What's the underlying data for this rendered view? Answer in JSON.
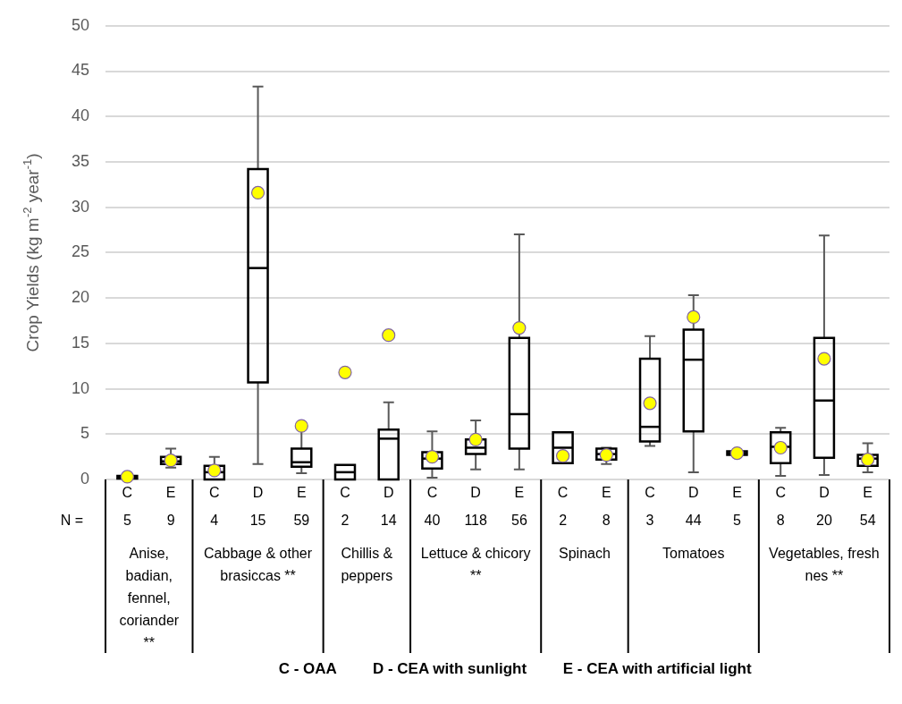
{
  "chart_data": {
    "type": "box",
    "ylabel": "Crop Yields (kg m$^{-2}$ year$^{-1}$)",
    "categories": [
      "C",
      "E",
      "C",
      "D",
      "E",
      "C",
      "D",
      "C",
      "D",
      "E",
      "C",
      "E",
      "C",
      "D",
      "E",
      "C",
      "D",
      "E"
    ],
    "color": "#000000",
    "boxes": [
      {
        "low": 0,
        "q1": 0.1,
        "median": 0.2,
        "q3": 0.4,
        "high": 0.4,
        "mean": 0.3
      },
      {
        "low": 1.3,
        "q1": 1.7,
        "median": 2.0,
        "q3": 2.5,
        "high": 3.4,
        "mean": 2.1
      },
      {
        "low": 0,
        "q1": 0,
        "median": 0.8,
        "q3": 1.5,
        "high": 2.5,
        "mean": 1.0
      },
      {
        "low": 1.7,
        "q1": 10.7,
        "median": 23.3,
        "q3": 34.2,
        "high": 43.3,
        "mean": 31.6
      },
      {
        "low": 0.7,
        "q1": 1.4,
        "median": 1.9,
        "q3": 3.4,
        "high": 5.9,
        "mean": 5.9
      },
      {
        "low": 0,
        "q1": 0,
        "median": 0.8,
        "q3": 1.6,
        "high": 1.6,
        "mean": 11.8
      },
      {
        "low": 0,
        "q1": 0,
        "median": 4.5,
        "q3": 5.5,
        "high": 8.5,
        "mean": 15.9
      },
      {
        "low": 0.2,
        "q1": 1.2,
        "median": 2.3,
        "q3": 3.0,
        "high": 5.3,
        "mean": 2.5
      },
      {
        "low": 1.1,
        "q1": 2.8,
        "median": 3.5,
        "q3": 4.4,
        "high": 6.5,
        "mean": 4.4
      },
      {
        "low": 1.1,
        "q1": 3.4,
        "median": 7.2,
        "q3": 15.6,
        "high": 27.0,
        "mean": 16.7
      },
      {
        "low": 1.8,
        "q1": 1.8,
        "median": 3.5,
        "q3": 5.2,
        "high": 5.2,
        "mean": 2.6
      },
      {
        "low": 1.7,
        "q1": 2.2,
        "median": 2.8,
        "q3": 3.4,
        "high": 3.5,
        "mean": 2.7
      },
      {
        "low": 3.7,
        "q1": 4.2,
        "median": 5.8,
        "q3": 13.3,
        "high": 15.8,
        "mean": 8.4
      },
      {
        "low": 0.8,
        "q1": 5.3,
        "median": 13.2,
        "q3": 16.5,
        "high": 20.3,
        "mean": 17.9
      },
      {
        "low": 2.7,
        "q1": 2.7,
        "median": 2.9,
        "q3": 3.1,
        "high": 3.1,
        "mean": 2.9
      },
      {
        "low": 0.4,
        "q1": 1.8,
        "median": 3.6,
        "q3": 5.2,
        "high": 5.7,
        "mean": 3.5
      },
      {
        "low": 0.5,
        "q1": 2.4,
        "median": 8.7,
        "q3": 15.6,
        "high": 26.9,
        "mean": 13.3
      },
      {
        "low": 0.8,
        "q1": 1.5,
        "median": 2.3,
        "q3": 2.7,
        "high": 4.0,
        "mean": 2.2
      }
    ],
    "ylim": [
      0,
      50
    ],
    "yticks": [
      0,
      5,
      10,
      15,
      20,
      25,
      30,
      35,
      40,
      45,
      50
    ],
    "grid": "y",
    "legend": false,
    "annotations": [
      "N =",
      "5",
      "9",
      "4",
      "15",
      "59",
      "2",
      "14",
      "40",
      "118",
      "56",
      "2",
      "8",
      "3",
      "44",
      "5",
      "8",
      "20",
      "54",
      "Anise, badian, fennel, coriander **",
      "Cabbage & other brasiccas **",
      "Chillis & peppers",
      "Lettuce & chicory **",
      "Spinach",
      "Tomatoes",
      "Vegetables, fresh nes **",
      "C - OAA",
      "D - CEA with sunlight",
      "E - CEA with artificial light"
    ]
  }
}
